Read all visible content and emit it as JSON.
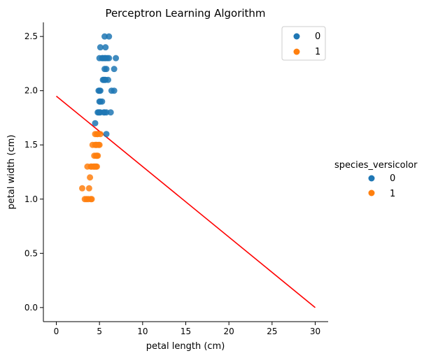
{
  "chart_data": {
    "type": "scatter",
    "title": "Perceptron Learning Algorithm",
    "xlabel": "petal length (cm)",
    "ylabel": "petal width (cm)",
    "xlim": [
      -1.5,
      31.5
    ],
    "ylim": [
      -0.13,
      2.63
    ],
    "x_ticks": [
      0,
      5,
      10,
      15,
      20,
      25,
      30
    ],
    "y_ticks": [
      0.0,
      0.5,
      1.0,
      1.5,
      2.0,
      2.5
    ],
    "x_tick_labels": [
      "0",
      "5",
      "10",
      "15",
      "20",
      "25",
      "30"
    ],
    "y_tick_labels": [
      "0.0",
      "0.5",
      "1.0",
      "1.5",
      "2.0",
      "2.5"
    ],
    "grid": false,
    "series": [
      {
        "name": "0",
        "color": "#1f77b4",
        "points": [
          [
            5.6,
            2.5
          ],
          [
            6.1,
            2.5
          ],
          [
            5.7,
            2.4
          ],
          [
            5.1,
            2.4
          ],
          [
            5.3,
            2.3
          ],
          [
            5.0,
            2.3
          ],
          [
            5.9,
            2.3
          ],
          [
            5.4,
            2.3
          ],
          [
            6.1,
            2.3
          ],
          [
            5.6,
            2.3
          ],
          [
            6.9,
            2.3
          ],
          [
            5.7,
            2.3
          ],
          [
            5.6,
            2.2
          ],
          [
            5.8,
            2.2
          ],
          [
            6.7,
            2.2
          ],
          [
            5.5,
            2.1
          ],
          [
            5.7,
            2.1
          ],
          [
            6.0,
            2.1
          ],
          [
            5.6,
            2.1
          ],
          [
            5.4,
            2.1
          ],
          [
            5.1,
            2.0
          ],
          [
            4.9,
            2.0
          ],
          [
            5.0,
            2.0
          ],
          [
            6.4,
            2.0
          ],
          [
            6.7,
            2.0
          ],
          [
            5.0,
            1.9
          ],
          [
            5.3,
            1.9
          ],
          [
            5.1,
            1.9
          ],
          [
            4.8,
            1.8
          ],
          [
            5.0,
            1.8
          ],
          [
            5.1,
            1.8
          ],
          [
            5.5,
            1.8
          ],
          [
            5.8,
            1.8
          ],
          [
            6.3,
            1.8
          ],
          [
            4.9,
            1.8
          ],
          [
            5.6,
            1.8
          ],
          [
            4.5,
            1.7
          ],
          [
            5.8,
            1.6
          ]
        ]
      },
      {
        "name": "1",
        "color": "#ff7f0e",
        "points": [
          [
            4.5,
            1.6
          ],
          [
            4.7,
            1.6
          ],
          [
            5.1,
            1.6
          ],
          [
            4.8,
            1.6
          ],
          [
            4.2,
            1.5
          ],
          [
            4.5,
            1.5
          ],
          [
            4.6,
            1.5
          ],
          [
            4.9,
            1.5
          ],
          [
            4.7,
            1.5
          ],
          [
            5.0,
            1.5
          ],
          [
            4.4,
            1.4
          ],
          [
            4.7,
            1.4
          ],
          [
            4.6,
            1.4
          ],
          [
            4.8,
            1.4
          ],
          [
            3.6,
            1.3
          ],
          [
            4.0,
            1.3
          ],
          [
            4.1,
            1.3
          ],
          [
            4.3,
            1.3
          ],
          [
            4.4,
            1.3
          ],
          [
            4.5,
            1.3
          ],
          [
            4.6,
            1.3
          ],
          [
            4.7,
            1.3
          ],
          [
            3.9,
            1.2
          ],
          [
            3.0,
            1.1
          ],
          [
            3.8,
            1.1
          ],
          [
            3.3,
            1.0
          ],
          [
            3.5,
            1.0
          ],
          [
            3.7,
            1.0
          ],
          [
            4.0,
            1.0
          ],
          [
            4.1,
            1.0
          ]
        ]
      }
    ],
    "decision_line": {
      "color": "#ff0000",
      "x": [
        0,
        30
      ],
      "y": [
        1.95,
        0.0
      ]
    },
    "legend_inside": {
      "placement": "top-right",
      "items": [
        "0",
        "1"
      ]
    },
    "legend_outside": {
      "placement": "right",
      "title": "species_versicolor",
      "items": [
        "0",
        "1"
      ]
    }
  }
}
